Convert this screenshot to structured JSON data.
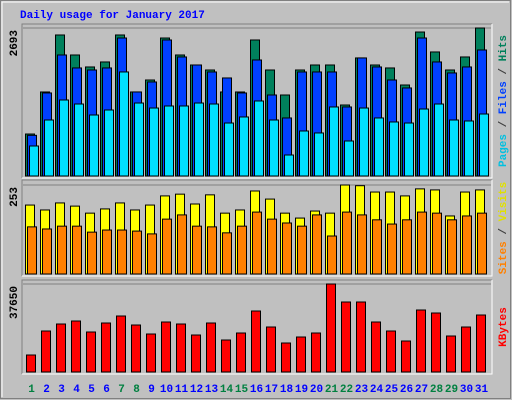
{
  "chart_data": [
    {
      "type": "bar",
      "title": "Daily usage for January 2017",
      "title_color": "#0000ff",
      "ylim": [
        0,
        2693
      ],
      "yticks": [
        2693
      ],
      "legend_separator": " / ",
      "separator_color": "#404040",
      "series": [
        {
          "name": "Hits",
          "color": "#00805c",
          "label_color": "#00805c",
          "values": [
            764,
            1529,
            2566,
            2202,
            1984,
            2075,
            2566,
            1529,
            1747,
            2511,
            2202,
            2020,
            1929,
            1529,
            1529,
            2475,
            1929,
            1474,
            1929,
            2020,
            2020,
            1292,
            2148,
            2020,
            1966,
            1656,
            2620,
            2257,
            1929,
            2166,
            2693
          ]
        },
        {
          "name": "Files",
          "color": "#0040ff",
          "label_color": "#0040ff",
          "values": [
            740,
            1511,
            2202,
            1966,
            1929,
            1966,
            2511,
            1529,
            1711,
            2475,
            2166,
            2020,
            1893,
            1784,
            1511,
            2111,
            1474,
            1056,
            1893,
            1893,
            1893,
            1256,
            2148,
            1984,
            1747,
            1602,
            2511,
            2075,
            1875,
            1984,
            2293
          ]
        },
        {
          "name": "Pages",
          "color": "#00e0ff",
          "label_color": "#00c0e0",
          "values": [
            546,
            1019,
            1383,
            1310,
            1110,
            1201,
            1893,
            1328,
            1237,
            1274,
            1274,
            1328,
            1310,
            964,
            1074,
            1365,
            1019,
            382,
            819,
            783,
            1256,
            637,
            1237,
            1056,
            983,
            964,
            1219,
            1310,
            1019,
            1001,
            1128
          ]
        }
      ]
    },
    {
      "type": "bar",
      "ylim": [
        0,
        253
      ],
      "yticks": [
        253
      ],
      "legend_separator": " / ",
      "separator_color": "#404040",
      "series": [
        {
          "name": "Visits",
          "color": "#ffff00",
          "label_color": "#e0e000",
          "values": [
            196,
            182,
            202,
            193,
            173,
            185,
            202,
            182,
            196,
            222,
            227,
            199,
            225,
            173,
            182,
            236,
            213,
            173,
            159,
            179,
            173,
            253,
            251,
            233,
            233,
            222,
            242,
            239,
            165,
            233,
            239
          ]
        },
        {
          "name": "Sites",
          "color": "#ff8000",
          "label_color": "#ff8000",
          "values": [
            134,
            128,
            136,
            136,
            119,
            125,
            125,
            122,
            114,
            156,
            168,
            136,
            134,
            117,
            136,
            176,
            156,
            145,
            136,
            168,
            108,
            176,
            168,
            154,
            142,
            154,
            176,
            173,
            154,
            165,
            173
          ]
        }
      ]
    },
    {
      "type": "bar",
      "ylim": [
        0,
        37650
      ],
      "yticks": [
        37650
      ],
      "legend_separator": " / ",
      "separator_color": "#404040",
      "series": [
        {
          "name": "KBytes",
          "color": "#ff0000",
          "label_color": "#ff0000",
          "values": [
            7273,
            17541,
            20536,
            21820,
            17114,
            20964,
            23959,
            20108,
            16258,
            21392,
            20536,
            15830,
            20964,
            13691,
            16686,
            26098,
            19253,
            12407,
            14974,
            16686,
            37650,
            29949,
            29949,
            21392,
            17541,
            13263,
            26526,
            25243,
            15402,
            19253,
            24387
          ]
        }
      ],
      "categories": [
        "1",
        "2",
        "3",
        "4",
        "5",
        "6",
        "7",
        "8",
        "9",
        "10",
        "11",
        "12",
        "13",
        "14",
        "15",
        "16",
        "17",
        "18",
        "19",
        "20",
        "21",
        "22",
        "23",
        "24",
        "25",
        "26",
        "27",
        "28",
        "29",
        "30",
        "31"
      ],
      "category_colors": [
        "#008040",
        "#0000ff",
        "#0000ff",
        "#0000ff",
        "#0000ff",
        "#0000ff",
        "#008040",
        "#008040",
        "#0000ff",
        "#0000ff",
        "#0000ff",
        "#0000ff",
        "#0000ff",
        "#008040",
        "#008040",
        "#0000ff",
        "#0000ff",
        "#0000ff",
        "#0000ff",
        "#0000ff",
        "#008040",
        "#008040",
        "#0000ff",
        "#0000ff",
        "#0000ff",
        "#0000ff",
        "#0000ff",
        "#008040",
        "#008040",
        "#0000ff",
        "#0000ff"
      ]
    }
  ]
}
